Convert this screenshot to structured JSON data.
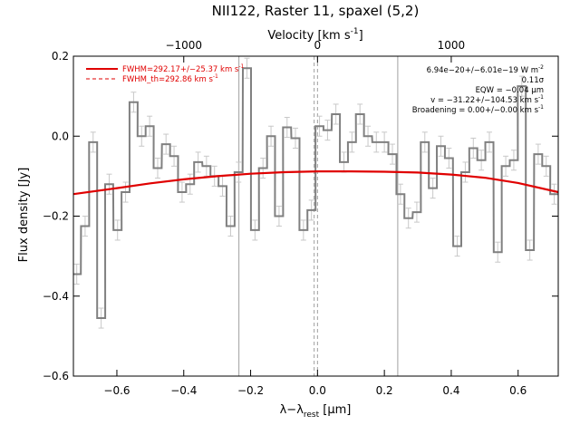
{
  "chart_data": {
    "type": "line",
    "title": "NII122, Raster 11, spaxel (5,2)",
    "xlabel": "λ−λ",
    "xlabel_sub": "rest",
    "xlabel_unit": " [μm]",
    "ylabel": "Flux density [Jy]",
    "top_axis_label": "Velocity [km s",
    "top_axis_label_sup": "-1",
    "top_axis_label_close": "]",
    "xlim": [
      -0.73,
      0.72
    ],
    "ylim": [
      -0.6,
      0.2
    ],
    "x_ticks": [
      -0.6,
      -0.4,
      -0.2,
      0.0,
      0.2,
      0.4,
      0.6
    ],
    "x_tick_labels": [
      "−0.6",
      "−0.4",
      "−0.2",
      "0.0",
      "0.2",
      "0.4",
      "0.6"
    ],
    "y_ticks": [
      -0.6,
      -0.4,
      -0.2,
      0.0,
      0.2
    ],
    "y_tick_labels": [
      "−0.6",
      "−0.4",
      "−0.2",
      "0.0",
      "0.2"
    ],
    "top_ticks_x": [
      -0.4,
      0.0,
      0.4
    ],
    "top_tick_labels": [
      "−1000",
      "0",
      "1000"
    ],
    "vlines_solid_x": [
      -0.235,
      0.24
    ],
    "vlines_dashed_x": [
      -0.01,
      0.0
    ],
    "spectrum": {
      "bin_width": 0.0242,
      "x": [
        -0.72,
        -0.695,
        -0.671,
        -0.647,
        -0.623,
        -0.598,
        -0.574,
        -0.55,
        -0.526,
        -0.502,
        -0.478,
        -0.453,
        -0.429,
        -0.405,
        -0.381,
        -0.357,
        -0.332,
        -0.308,
        -0.284,
        -0.26,
        -0.236,
        -0.211,
        -0.187,
        -0.163,
        -0.139,
        -0.115,
        -0.091,
        -0.066,
        -0.042,
        -0.018,
        0.006,
        0.03,
        0.055,
        0.079,
        0.103,
        0.127,
        0.151,
        0.176,
        0.2,
        0.224,
        0.248,
        0.272,
        0.297,
        0.321,
        0.345,
        0.369,
        0.393,
        0.418,
        0.442,
        0.466,
        0.49,
        0.514,
        0.539,
        0.563,
        0.587,
        0.611,
        0.635,
        0.66,
        0.684,
        0.708
      ],
      "y": [
        -0.345,
        -0.225,
        -0.015,
        -0.455,
        -0.12,
        -0.235,
        -0.14,
        0.085,
        0.0,
        0.025,
        -0.08,
        -0.02,
        -0.05,
        -0.14,
        -0.12,
        -0.065,
        -0.075,
        -0.1,
        -0.125,
        -0.225,
        -0.09,
        0.17,
        -0.235,
        -0.08,
        0.0,
        -0.2,
        0.022,
        -0.005,
        -0.235,
        -0.185,
        0.025,
        0.015,
        0.055,
        -0.065,
        -0.015,
        0.055,
        0.0,
        -0.015,
        -0.015,
        -0.045,
        -0.145,
        -0.205,
        -0.19,
        -0.015,
        -0.13,
        -0.025,
        -0.055,
        -0.275,
        -0.09,
        -0.03,
        -0.06,
        -0.015,
        -0.29,
        -0.075,
        -0.06,
        0.125,
        -0.285,
        -0.045,
        -0.075,
        -0.145
      ],
      "err": 0.025
    },
    "fit_curve": {
      "name": "FWHM=292.17+/−25.37 km s",
      "x": [
        -0.73,
        -0.6,
        -0.5,
        -0.4,
        -0.3,
        -0.2,
        -0.1,
        0.0,
        0.1,
        0.2,
        0.3,
        0.4,
        0.5,
        0.6,
        0.72
      ],
      "y": [
        -0.145,
        -0.13,
        -0.118,
        -0.108,
        -0.1,
        -0.094,
        -0.09,
        -0.088,
        -0.088,
        -0.089,
        -0.091,
        -0.096,
        -0.104,
        -0.117,
        -0.14
      ]
    },
    "legend": [
      {
        "label": "FWHM=292.17+/−25.37 km s",
        "sup": "-1",
        "style": "solid"
      },
      {
        "label": "FWHM_th=292.86 km s",
        "sup": "-1",
        "style": "dashed"
      }
    ],
    "annotations": {
      "flux": "6.94e−20+/−6.01e−19 W m",
      "flux_sup": "-2",
      "sigma": "0.11σ",
      "eqw": "EQW = −0.04 μm",
      "velocity": "v = −31.22+/−104.53 km s",
      "velocity_sup": "-1",
      "broadening": "Broadening = 0.00+/−0.00 km s",
      "broadening_sup": "-1"
    },
    "colors": {
      "spectrum": "#808080",
      "error_bars": "#c8c8c8",
      "fit": "#e00000",
      "vlines": "#a0a0a0"
    }
  }
}
